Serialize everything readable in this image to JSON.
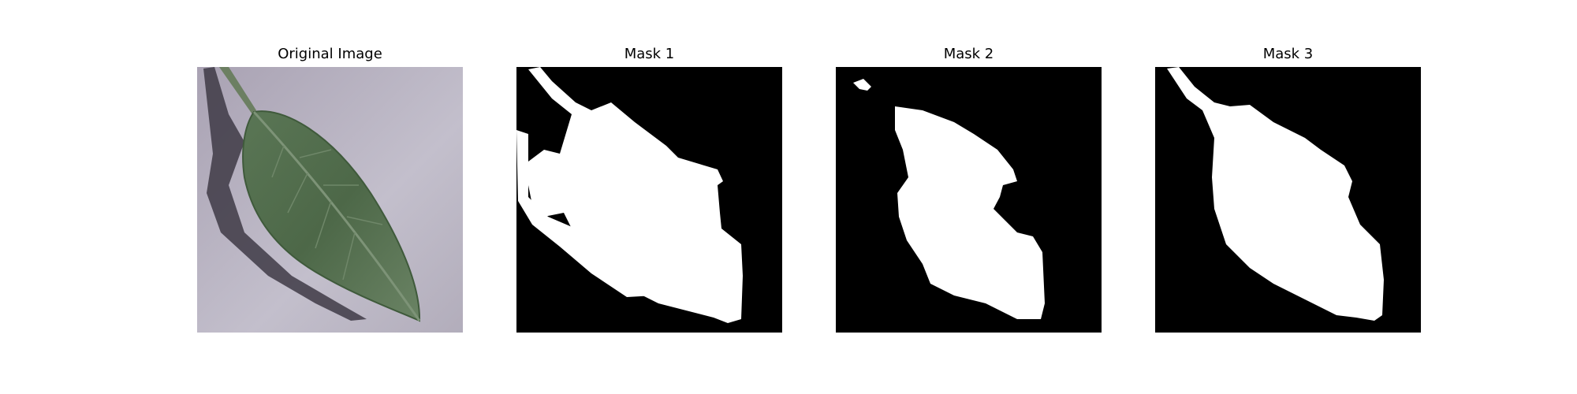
{
  "figure": {
    "panels": [
      {
        "title": "Original Image"
      },
      {
        "title": "Mask 1"
      },
      {
        "title": "Mask 2"
      },
      {
        "title": "Mask 3"
      }
    ]
  },
  "colors": {
    "background_gray": "#b9b3c2",
    "leaf_green": "#4f6b4a",
    "shadow": "#3a3540",
    "mask_foreground": "#ffffff",
    "mask_background": "#000000"
  }
}
